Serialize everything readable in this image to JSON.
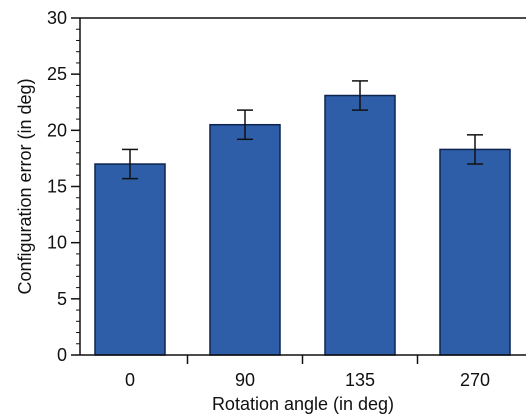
{
  "chart_data": {
    "type": "bar",
    "xlabel": "Rotation angle (in deg)",
    "ylabel": "Configuration error (in deg)",
    "categories": [
      "0",
      "90",
      "135",
      "270"
    ],
    "values": [
      17.0,
      20.5,
      23.1,
      18.3
    ],
    "error": [
      1.3,
      1.3,
      1.3,
      1.3
    ],
    "ylim": [
      0,
      30
    ],
    "yticks": [
      0,
      5,
      10,
      15,
      20,
      25,
      30
    ],
    "yticks_labels": [
      "0",
      "5",
      "10",
      "15",
      "20",
      "25",
      "30"
    ],
    "grid": false,
    "legend": "none",
    "bar_color": "#2e5ea8",
    "bar_edge_color": "#0d2350",
    "axis_color": "#111111"
  }
}
